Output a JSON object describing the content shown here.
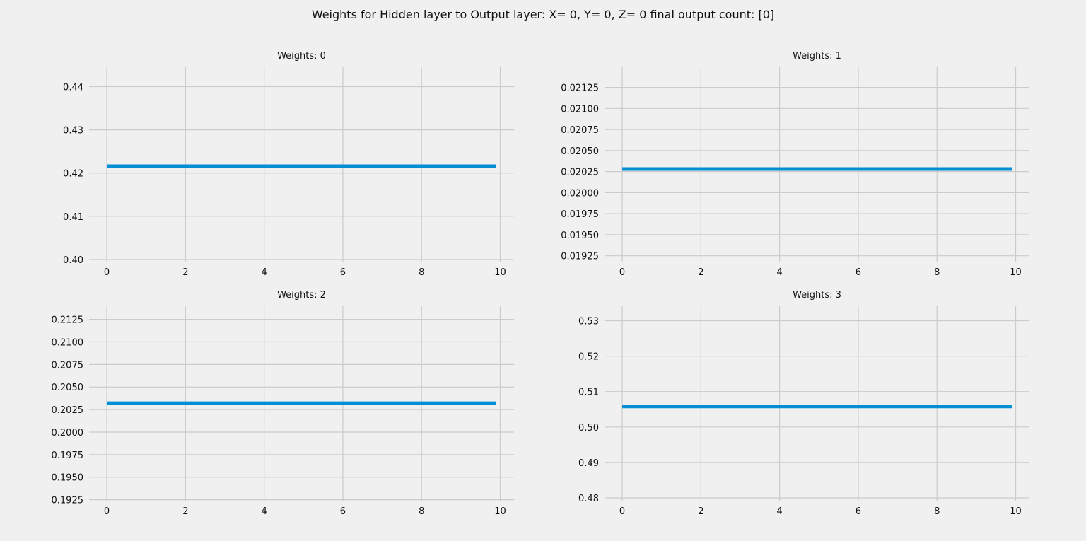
{
  "figure": {
    "title": "Weights for Hidden layer to Output layer:  X= 0, Y= 0, Z= 0 final output count: [0]"
  },
  "style": {
    "background": "#f0f0f0",
    "grid_color": "#cbcbcb",
    "line_color": "#008fd5"
  },
  "chart_data": [
    {
      "type": "line",
      "title": "Weights: 0",
      "xlabel": "",
      "ylabel": "",
      "xlim": [
        -0.45,
        10.35
      ],
      "ylim": [
        0.3995,
        0.4445
      ],
      "xticks": [
        0,
        2,
        4,
        6,
        8,
        10
      ],
      "xtick_labels": [
        "0",
        "2",
        "4",
        "6",
        "8",
        "10"
      ],
      "yticks": [
        0.4,
        0.41,
        0.42,
        0.43,
        0.44
      ],
      "ytick_labels": [
        "0.40",
        "0.41",
        "0.42",
        "0.43",
        "0.44"
      ],
      "grid": true,
      "series": [
        {
          "x": [
            0,
            9.9
          ],
          "y": [
            0.4216,
            0.4216
          ]
        }
      ]
    },
    {
      "type": "line",
      "title": "Weights: 1",
      "xlabel": "",
      "ylabel": "",
      "xlim": [
        -0.45,
        10.35
      ],
      "ylim": [
        0.01918,
        0.02149
      ],
      "xticks": [
        0,
        2,
        4,
        6,
        8,
        10
      ],
      "xtick_labels": [
        "0",
        "2",
        "4",
        "6",
        "8",
        "10"
      ],
      "yticks": [
        0.01925,
        0.0195,
        0.01975,
        0.02,
        0.02025,
        0.0205,
        0.02075,
        0.021,
        0.02125
      ],
      "ytick_labels": [
        "0.01925",
        "0.01950",
        "0.01975",
        "0.02000",
        "0.02025",
        "0.02050",
        "0.02075",
        "0.02100",
        "0.02125"
      ],
      "grid": true,
      "series": [
        {
          "x": [
            0,
            9.9
          ],
          "y": [
            0.02028,
            0.02028
          ]
        }
      ]
    },
    {
      "type": "line",
      "title": "Weights: 2",
      "xlabel": "",
      "ylabel": "",
      "xlim": [
        -0.45,
        10.35
      ],
      "ylim": [
        0.19239,
        0.21396
      ],
      "xticks": [
        0,
        2,
        4,
        6,
        8,
        10
      ],
      "xtick_labels": [
        "0",
        "2",
        "4",
        "6",
        "8",
        "10"
      ],
      "yticks": [
        0.1925,
        0.195,
        0.1975,
        0.2,
        0.2025,
        0.205,
        0.2075,
        0.21,
        0.2125
      ],
      "ytick_labels": [
        "0.1925",
        "0.1950",
        "0.1975",
        "0.2000",
        "0.2025",
        "0.2050",
        "0.2075",
        "0.2100",
        "0.2125"
      ],
      "grid": true,
      "series": [
        {
          "x": [
            0,
            9.9
          ],
          "y": [
            0.2032,
            0.2032
          ]
        }
      ]
    },
    {
      "type": "line",
      "title": "Weights: 3",
      "xlabel": "",
      "ylabel": "",
      "xlim": [
        -0.45,
        10.35
      ],
      "ylim": [
        0.4792,
        0.5341
      ],
      "xticks": [
        0,
        2,
        4,
        6,
        8,
        10
      ],
      "xtick_labels": [
        "0",
        "2",
        "4",
        "6",
        "8",
        "10"
      ],
      "yticks": [
        0.48,
        0.49,
        0.5,
        0.51,
        0.52,
        0.53
      ],
      "ytick_labels": [
        "0.48",
        "0.49",
        "0.50",
        "0.51",
        "0.52",
        "0.53"
      ],
      "grid": true,
      "series": [
        {
          "x": [
            0,
            9.9
          ],
          "y": [
            0.5058,
            0.5058
          ]
        }
      ]
    }
  ]
}
